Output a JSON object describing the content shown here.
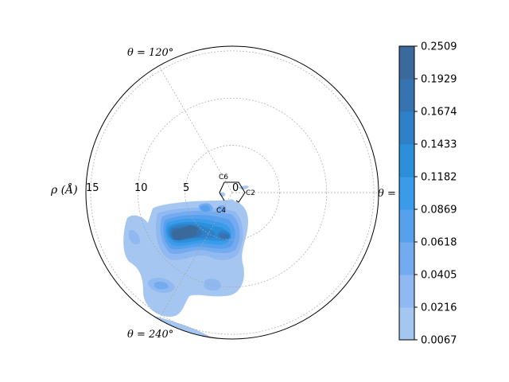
{
  "chart_data": {
    "type": "polar-kde",
    "radial_axis": {
      "label": "ρ (Å)",
      "max": 15.5,
      "ticks": [
        0,
        5,
        10,
        15
      ],
      "tick_labels": [
        "0",
        "5",
        "10",
        "15"
      ]
    },
    "angle_labels": [
      {
        "text": "θ = 120°",
        "angle_deg": 120
      },
      {
        "text": "θ = 240°",
        "angle_deg": 240
      },
      {
        "text": "θ =",
        "angle_deg": 0
      }
    ],
    "angle_guide_lines_deg": [
      0,
      120,
      240
    ],
    "ring_label": {
      "C6": "C6",
      "C2": "C2",
      "C4": "C4"
    },
    "colorbar": {
      "levels": [
        0.0067,
        0.0216,
        0.0405,
        0.0618,
        0.0869,
        0.1182,
        0.1433,
        0.1674,
        0.1929,
        0.2509
      ],
      "tick_labels": [
        "0.0067",
        "0.0216",
        "0.0405",
        "0.0618",
        "0.0869",
        "0.1182",
        "0.1433",
        "0.1674",
        "0.1929",
        "0.2509"
      ],
      "colors": [
        "#a5c6f0",
        "#8fb9f0",
        "#74aaf0",
        "#56a0ee",
        "#3a9beb",
        "#2b8fd9",
        "#2e80c8",
        "#3574b1",
        "#3a6a9c"
      ]
    },
    "density_peaks": [
      {
        "rho": 7.5,
        "theta_deg": 215,
        "density": 0.25
      },
      {
        "rho": 5.8,
        "theta_deg": 240,
        "density": 0.25
      },
      {
        "rho": 3.5,
        "theta_deg": 275,
        "density": 0.22
      },
      {
        "rho": 2.5,
        "theta_deg": 232,
        "density": 0.14
      },
      {
        "rho": 11.0,
        "theta_deg": 207,
        "density": 0.06
      },
      {
        "rho": 9.5,
        "theta_deg": 238,
        "density": 0.05
      },
      {
        "rho": 8.5,
        "theta_deg": 258,
        "density": 0.04
      }
    ],
    "grid": true
  }
}
